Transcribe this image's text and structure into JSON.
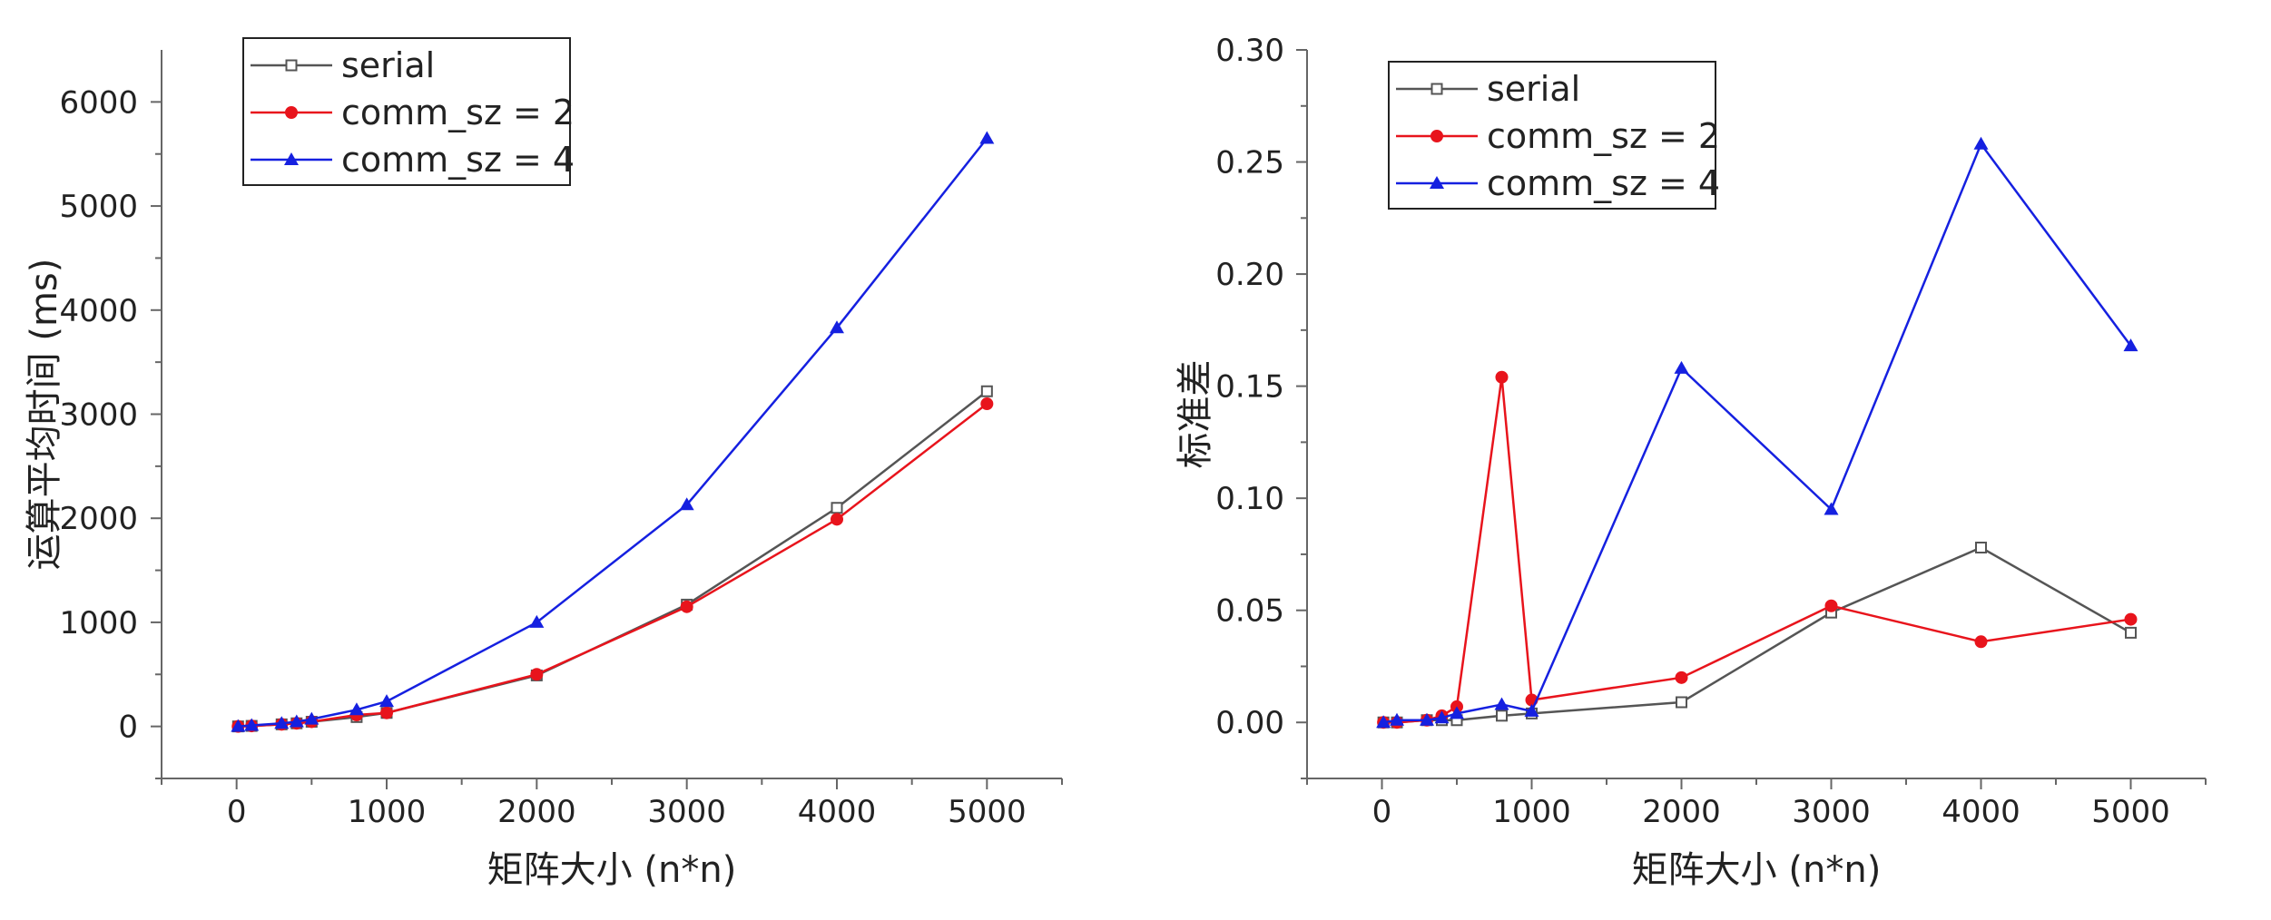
{
  "chart_data": [
    {
      "type": "line",
      "title": "",
      "xlabel": "矩阵大小 (n*n)",
      "ylabel": "运算平均时间 (ms)",
      "xlim": [
        -500,
        5500
      ],
      "ylim": [
        -500,
        6500
      ],
      "xticks": [
        "0",
        "1000",
        "2000",
        "3000",
        "4000",
        "5000"
      ],
      "yticks": [
        "0",
        "1000",
        "2000",
        "3000",
        "4000",
        "5000",
        "6000"
      ],
      "xtick_values": [
        0,
        1000,
        2000,
        3000,
        4000,
        5000
      ],
      "ytick_values": [
        0,
        1000,
        2000,
        3000,
        4000,
        5000,
        6000
      ],
      "legend_position": "top-left",
      "series": [
        {
          "name": "serial",
          "color": "#555555",
          "marker": "square-open",
          "x": [
            10,
            100,
            300,
            400,
            500,
            800,
            1000,
            2000,
            3000,
            4000,
            5000
          ],
          "y": [
            0,
            5,
            20,
            30,
            45,
            90,
            130,
            490,
            1170,
            2100,
            3220
          ]
        },
        {
          "name": "comm_sz = 2",
          "color": "#e8141c",
          "marker": "circle",
          "x": [
            10,
            100,
            300,
            400,
            500,
            800,
            1000,
            2000,
            3000,
            4000,
            5000
          ],
          "y": [
            0,
            5,
            20,
            30,
            45,
            110,
            130,
            500,
            1150,
            1990,
            3100
          ]
        },
        {
          "name": "comm_sz = 4",
          "color": "#1520e0",
          "marker": "triangle",
          "x": [
            10,
            100,
            300,
            400,
            500,
            800,
            1000,
            2000,
            3000,
            4000,
            5000
          ],
          "y": [
            0,
            10,
            30,
            45,
            70,
            160,
            240,
            1000,
            2130,
            3830,
            5650
          ]
        }
      ]
    },
    {
      "type": "line",
      "title": "",
      "xlabel": "矩阵大小 (n*n)",
      "ylabel": "标准差",
      "xlim": [
        -500,
        5500
      ],
      "ylim": [
        -0.025,
        0.3
      ],
      "xticks": [
        "0",
        "1000",
        "2000",
        "3000",
        "4000",
        "5000"
      ],
      "yticks": [
        "0.00",
        "0.05",
        "0.10",
        "0.15",
        "0.20",
        "0.25",
        "0.30"
      ],
      "xtick_values": [
        0,
        1000,
        2000,
        3000,
        4000,
        5000
      ],
      "ytick_values": [
        0,
        0.05,
        0.1,
        0.15,
        0.2,
        0.25,
        0.3
      ],
      "legend_position": "top-left",
      "series": [
        {
          "name": "serial",
          "color": "#555555",
          "marker": "square-open",
          "x": [
            10,
            100,
            300,
            400,
            500,
            800,
            1000,
            2000,
            3000,
            4000,
            5000
          ],
          "y": [
            0,
            0,
            0.001,
            0.001,
            0.001,
            0.003,
            0.004,
            0.009,
            0.049,
            0.078,
            0.04
          ]
        },
        {
          "name": "comm_sz = 2",
          "color": "#e8141c",
          "marker": "circle",
          "x": [
            10,
            100,
            300,
            400,
            500,
            800,
            1000,
            2000,
            3000,
            4000,
            5000
          ],
          "y": [
            0,
            0,
            0.001,
            0.003,
            0.007,
            0.154,
            0.01,
            0.02,
            0.052,
            0.036,
            0.046
          ]
        },
        {
          "name": "comm_sz = 4",
          "color": "#1520e0",
          "marker": "triangle",
          "x": [
            10,
            100,
            300,
            400,
            500,
            800,
            1000,
            2000,
            3000,
            4000,
            5000
          ],
          "y": [
            0,
            0.001,
            0.001,
            0.002,
            0.004,
            0.008,
            0.005,
            0.158,
            0.095,
            0.258,
            0.168
          ]
        }
      ]
    }
  ]
}
